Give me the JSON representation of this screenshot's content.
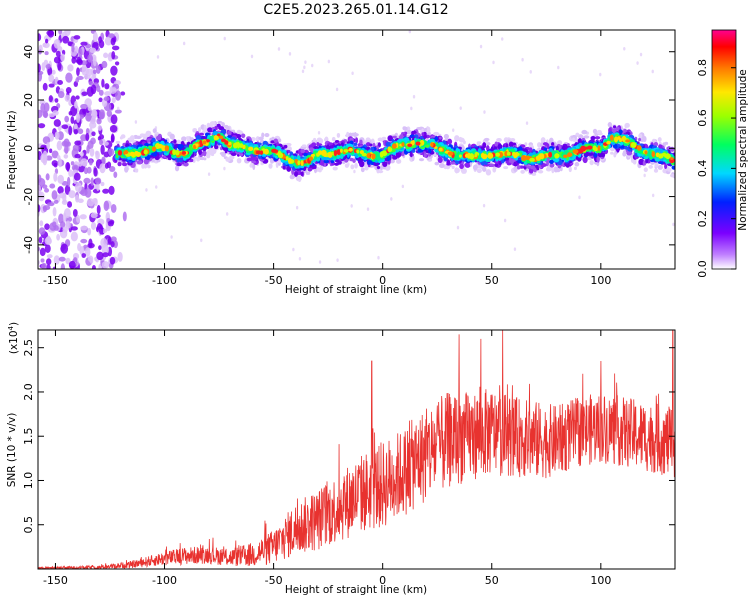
{
  "title": "C2E5.2023.265.01.14.G12",
  "chart_data": [
    {
      "type": "heatmap",
      "xlabel": "Height of straight line (km)",
      "ylabel": "Frequency (Hz)",
      "xlim": [
        -158,
        134
      ],
      "ylim": [
        -50,
        49
      ],
      "xticks": [
        -150,
        -100,
        -50,
        0,
        50,
        100
      ],
      "yticks": [
        -40,
        -20,
        0,
        20,
        40
      ],
      "colorbar": {
        "label": "Normalized spectral amplitude",
        "range": [
          0,
          0.95
        ],
        "ticks": [
          "0.0",
          "0.2",
          "0.4",
          "0.6",
          "0.8"
        ],
        "colormap": "rainbow (white-violet-blue-cyan-green-yellow-red-magenta)"
      },
      "noise_region_x": [
        -158,
        -122
      ],
      "signal_start_x": -122,
      "ridge": {
        "x": [
          -122,
          -110,
          -100,
          -90,
          -80,
          -75,
          -70,
          -60,
          -50,
          -40,
          -35,
          -30,
          -20,
          -10,
          0,
          10,
          15,
          20,
          30,
          40,
          50,
          60,
          70,
          80,
          90,
          100,
          105,
          110,
          120,
          130,
          134
        ],
        "y": [
          -3,
          -1,
          0,
          -2,
          3,
          6,
          1,
          0,
          -2,
          -5,
          -6,
          -3,
          -1,
          -2,
          -3,
          2,
          3,
          1,
          -1,
          -4,
          -2,
          -3,
          -4,
          -3,
          -1,
          0,
          5,
          3,
          -1,
          -4,
          -6
        ]
      }
    },
    {
      "type": "line",
      "xlabel": "Height of straight line (km)",
      "ylabel": "SNR (10 * v/v)",
      "y_multiplier": "(x10^4)",
      "y_multiplier_base": "(x10",
      "y_multiplier_exp": "4",
      "y_multiplier_close": ")",
      "xlim": [
        -158,
        134
      ],
      "ylim": [
        0,
        2.7
      ],
      "xticks": [
        -150,
        -100,
        -50,
        0,
        50,
        100
      ],
      "yticks": [
        "0.5",
        "1.0",
        "1.5",
        "2.0",
        "2.5"
      ],
      "series": [
        {
          "color": "#e8322f",
          "envelope": {
            "x": [
              -158,
              -130,
              -115,
              -100,
              -90,
              -80,
              -70,
              -60,
              -50,
              -40,
              -30,
              -20,
              -10,
              0,
              10,
              20,
              30,
              40,
              50,
              60,
              70,
              80,
              90,
              100,
              110,
              120,
              130,
              134
            ],
            "mean": [
              0.01,
              0.02,
              0.05,
              0.12,
              0.15,
              0.16,
              0.13,
              0.16,
              0.25,
              0.45,
              0.55,
              0.7,
              0.85,
              0.95,
              1.1,
              1.3,
              1.45,
              1.5,
              1.55,
              1.5,
              1.45,
              1.45,
              1.55,
              1.6,
              1.55,
              1.5,
              1.45,
              1.4
            ],
            "spread": [
              0.01,
              0.02,
              0.04,
              0.08,
              0.1,
              0.1,
              0.1,
              0.14,
              0.2,
              0.3,
              0.35,
              0.4,
              0.45,
              0.5,
              0.5,
              0.55,
              0.55,
              0.5,
              0.5,
              0.45,
              0.45,
              0.4,
              0.4,
              0.4,
              0.4,
              0.4,
              0.4,
              0.4
            ]
          },
          "peaks": [
            [
              -5,
              2.35
            ],
            [
              35,
              2.65
            ],
            [
              45,
              2.6
            ],
            [
              55,
              2.7
            ],
            [
              100,
              2.35
            ],
            [
              133,
              2.7
            ]
          ]
        }
      ]
    }
  ],
  "colors": {
    "line": "#e8322f",
    "noise": "#8a2be2",
    "background": "#ffffff",
    "axes": "#000000"
  }
}
